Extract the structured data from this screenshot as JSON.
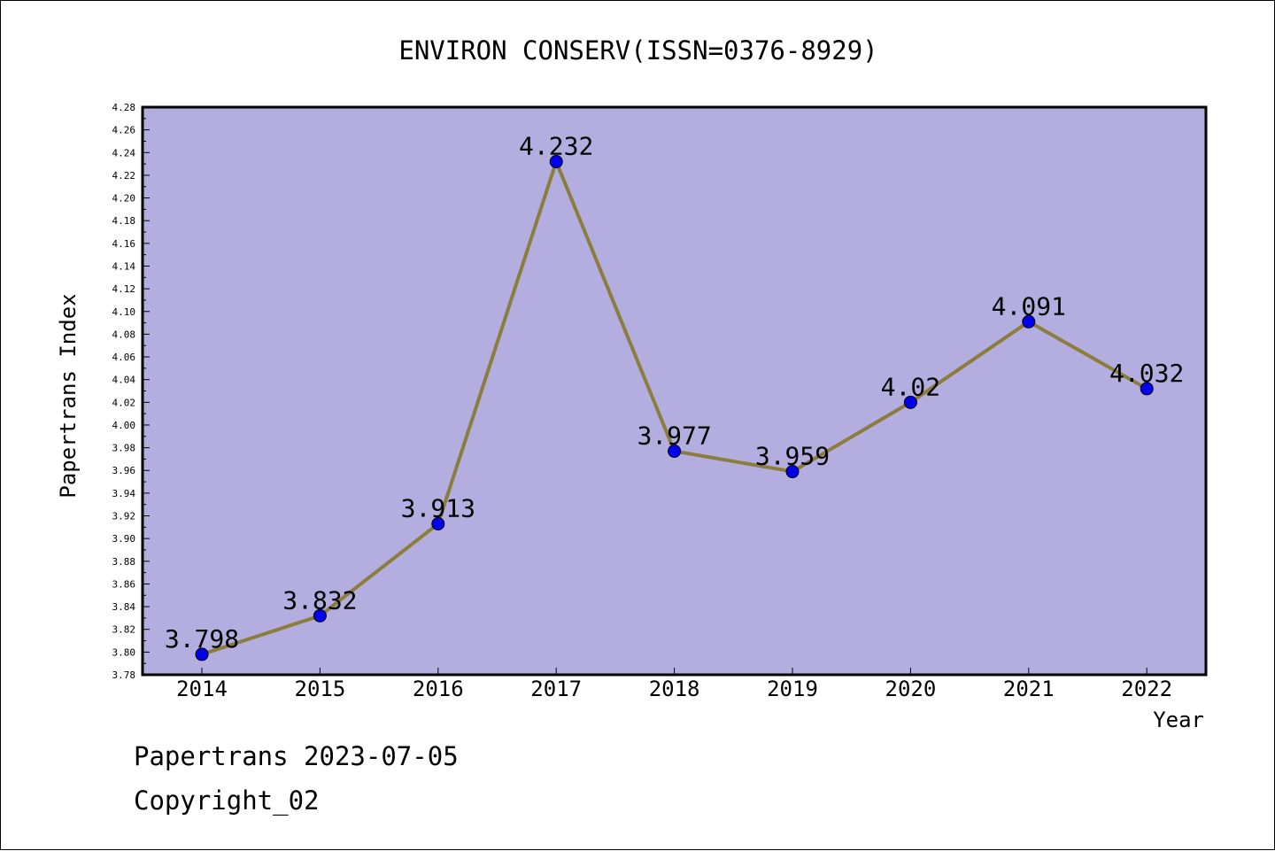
{
  "chart_data": {
    "type": "line",
    "title": "ENVIRON CONSERV(ISSN=0376-8929)",
    "xlabel": "Year",
    "ylabel": "Papertrans Index",
    "categories": [
      "2014",
      "2015",
      "2016",
      "2017",
      "2018",
      "2019",
      "2020",
      "2021",
      "2022"
    ],
    "series": [
      {
        "values": [
          3.798,
          3.832,
          3.913,
          4.232,
          3.977,
          3.959,
          4.02,
          4.091,
          4.032
        ],
        "labels": [
          "3.798",
          "3.832",
          "3.913",
          "4.232",
          "3.977",
          "3.959",
          "4.02",
          "4.091",
          "4.032"
        ]
      }
    ],
    "ylim": [
      3.78,
      4.28
    ],
    "ytick_step": 0.02,
    "grid": false,
    "colors": {
      "plot_background": "#b4aee0",
      "line": "#8b7d3c",
      "marker": "#0000ee"
    }
  },
  "footer": {
    "date_line": "Papertrans 2023-07-05",
    "copyright": "Copyright_02"
  }
}
